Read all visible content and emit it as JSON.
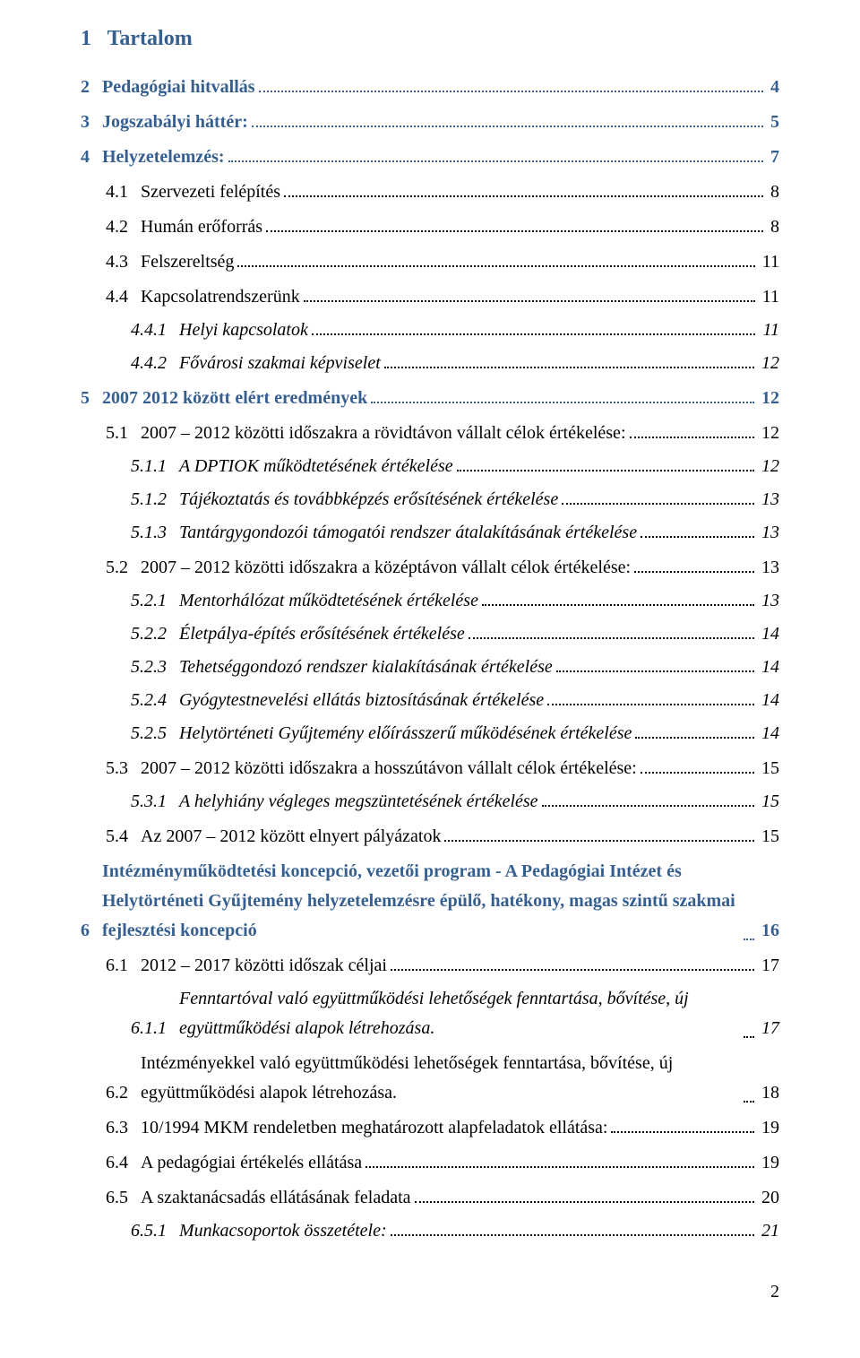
{
  "colors": {
    "heading": "#365f91",
    "body": "#000000",
    "background": "#ffffff"
  },
  "typography": {
    "font_family": "Times New Roman",
    "body_size_pt": 15,
    "heading_size_pt": 18
  },
  "page_number": "2",
  "toc_title_num": "1",
  "toc_title_label": "Tartalom",
  "entries": [
    {
      "level": 1,
      "num": "2",
      "label": "Pedagógiai hitvallás",
      "page": "4"
    },
    {
      "level": 1,
      "num": "3",
      "label": "Jogszabályi háttér:",
      "page": "5"
    },
    {
      "level": 1,
      "num": "4",
      "label": "Helyzetelemzés:",
      "page": "7"
    },
    {
      "level": 2,
      "num": "4.1",
      "label": "Szervezeti felépítés",
      "page": "8"
    },
    {
      "level": 2,
      "num": "4.2",
      "label": "Humán erőforrás",
      "page": "8"
    },
    {
      "level": 2,
      "num": "4.3",
      "label": "Felszereltség",
      "page": "11"
    },
    {
      "level": 2,
      "num": "4.4",
      "label": "Kapcsolatrendszerünk",
      "page": "11"
    },
    {
      "level": 3,
      "num": "4.4.1",
      "label": "Helyi kapcsolatok",
      "page": "11"
    },
    {
      "level": 3,
      "num": "4.4.2",
      "label": "Fővárosi szakmai képviselet",
      "page": "12"
    },
    {
      "level": 1,
      "num": "5",
      "label": "2007 2012 között elért eredmények",
      "page": "12"
    },
    {
      "level": 2,
      "num": "5.1",
      "label": "2007 – 2012 közötti időszakra a rövidtávon vállalt célok értékelése:",
      "page": "12"
    },
    {
      "level": 3,
      "num": "5.1.1",
      "label": "A DPTIOK működtetésének értékelése",
      "page": "12"
    },
    {
      "level": 3,
      "num": "5.1.2",
      "label": "Tájékoztatás és továbbképzés erősítésének értékelése",
      "page": "13"
    },
    {
      "level": 3,
      "num": "5.1.3",
      "label": "Tantárgygondozói támogatói rendszer átalakításának értékelése",
      "page": "13"
    },
    {
      "level": 2,
      "num": "5.2",
      "label": "2007 – 2012 közötti időszakra a középtávon vállalt célok értékelése:",
      "page": "13"
    },
    {
      "level": 3,
      "num": "5.2.1",
      "label": "Mentorhálózat működtetésének értékelése",
      "page": "13"
    },
    {
      "level": 3,
      "num": "5.2.2",
      "label": "Életpálya-építés erősítésének értékelése",
      "page": "14"
    },
    {
      "level": 3,
      "num": "5.2.3",
      "label": "Tehetséggondozó rendszer kialakításának értékelése",
      "page": "14"
    },
    {
      "level": 3,
      "num": "5.2.4",
      "label": "Gyógytestnevelési ellátás biztosításának értékelése",
      "page": "14"
    },
    {
      "level": 3,
      "num": "5.2.5",
      "label": "Helytörténeti Gyűjtemény előírásszerű működésének értékelése",
      "page": "14"
    },
    {
      "level": 2,
      "num": "5.3",
      "label": "2007 – 2012 közötti időszakra a hosszútávon vállalt célok értékelése:",
      "page": "15"
    },
    {
      "level": 3,
      "num": "5.3.1",
      "label": "A helyhiány végleges megszüntetésének értékelése",
      "page": "15"
    },
    {
      "level": 2,
      "num": "5.4",
      "label": "Az 2007 – 2012 között elnyert pályázatok",
      "page": "15"
    },
    {
      "level": 1,
      "num": "6",
      "label": "Intézményműködtetési koncepció, vezetői program - A Pedagógiai Intézet és Helytörténeti Gyűjtemény helyzetelemzésre épülő, hatékony, magas szintű szakmai fejlesztési koncepció",
      "page": "16",
      "wrap": true
    },
    {
      "level": 2,
      "num": "6.1",
      "label": "2012 – 2017  közötti időszak céljai",
      "page": "17"
    },
    {
      "level": 3,
      "num": "6.1.1",
      "label": "Fenntartóval való együttműködési lehetőségek fenntartása, bővítése, új együttműködési alapok létrehozása.",
      "page": "17",
      "wrap": true
    },
    {
      "level": 2,
      "num": "6.2",
      "label": "Intézményekkel való együttműködési lehetőségek fenntartása, bővítése, új együttműködési alapok létrehozása.",
      "page": "18",
      "wrap": true
    },
    {
      "level": 2,
      "num": "6.3",
      "label": "10/1994 MKM rendeletben meghatározott alapfeladatok ellátása:",
      "page": "19"
    },
    {
      "level": 2,
      "num": "6.4",
      "label": "A pedagógiai értékelés ellátása",
      "page": "19"
    },
    {
      "level": 2,
      "num": "6.5",
      "label": "A szaktanácsadás ellátásának feladata",
      "page": "20"
    },
    {
      "level": 3,
      "num": "6.5.1",
      "label": "Munkacsoportok összetétele:",
      "page": "21"
    }
  ]
}
